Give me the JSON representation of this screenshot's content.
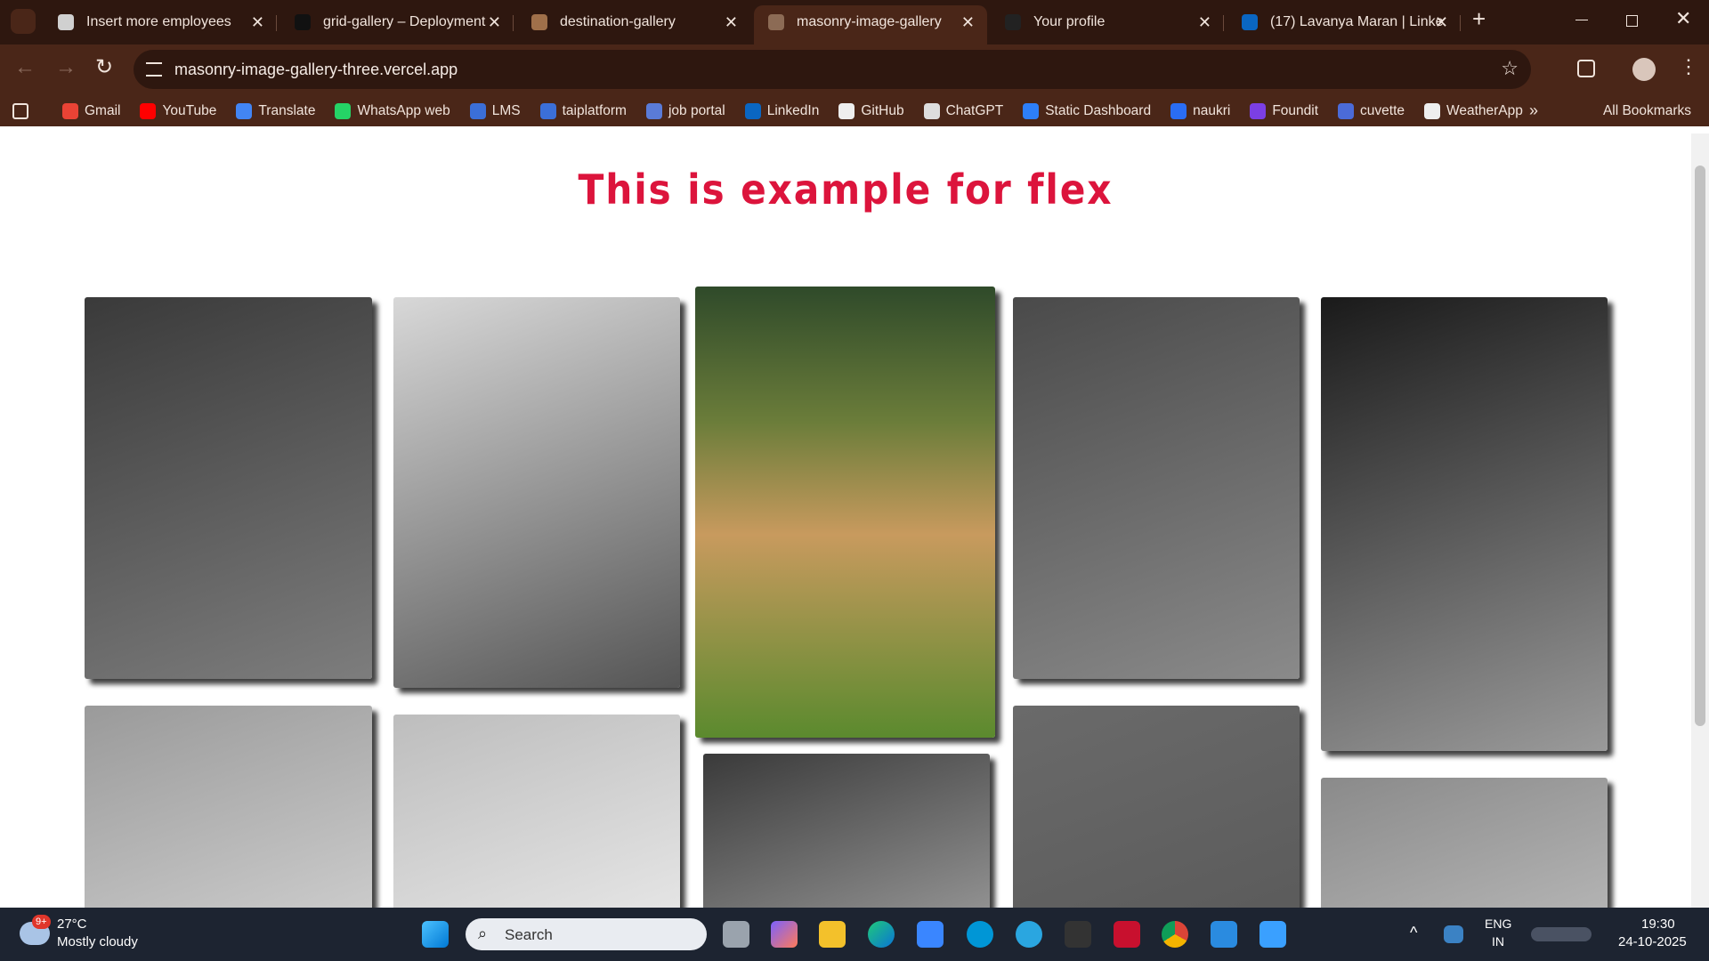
{
  "browser": {
    "tabs": [
      {
        "title": "Insert more employees"
      },
      {
        "title": "grid-gallery – Deployment"
      },
      {
        "title": "destination-gallery"
      },
      {
        "title": "masonry-image-gallery"
      },
      {
        "title": "Your profile"
      },
      {
        "title": "(17) Lavanya Maran | Linke"
      }
    ],
    "url": "masonry-image-gallery-three.vercel.app",
    "bookmarks": [
      "Gmail",
      "YouTube",
      "Translate",
      "WhatsApp web",
      "LMS",
      "taiplatform",
      "job portal",
      "LinkedIn",
      "GitHub",
      "ChatGPT",
      "Static Dashboard",
      "naukri",
      "Foundit",
      "cuvette",
      "WeatherApp"
    ],
    "all_bookmarks": "All Bookmarks"
  },
  "page": {
    "heading": "This is example for flex"
  },
  "taskbar": {
    "weather_badge": "9+",
    "temperature": "27°C",
    "weather": "Mostly cloudy",
    "search": "Search",
    "language": "ENG",
    "region": "IN",
    "time": "19:30",
    "date": "24-10-2025"
  }
}
